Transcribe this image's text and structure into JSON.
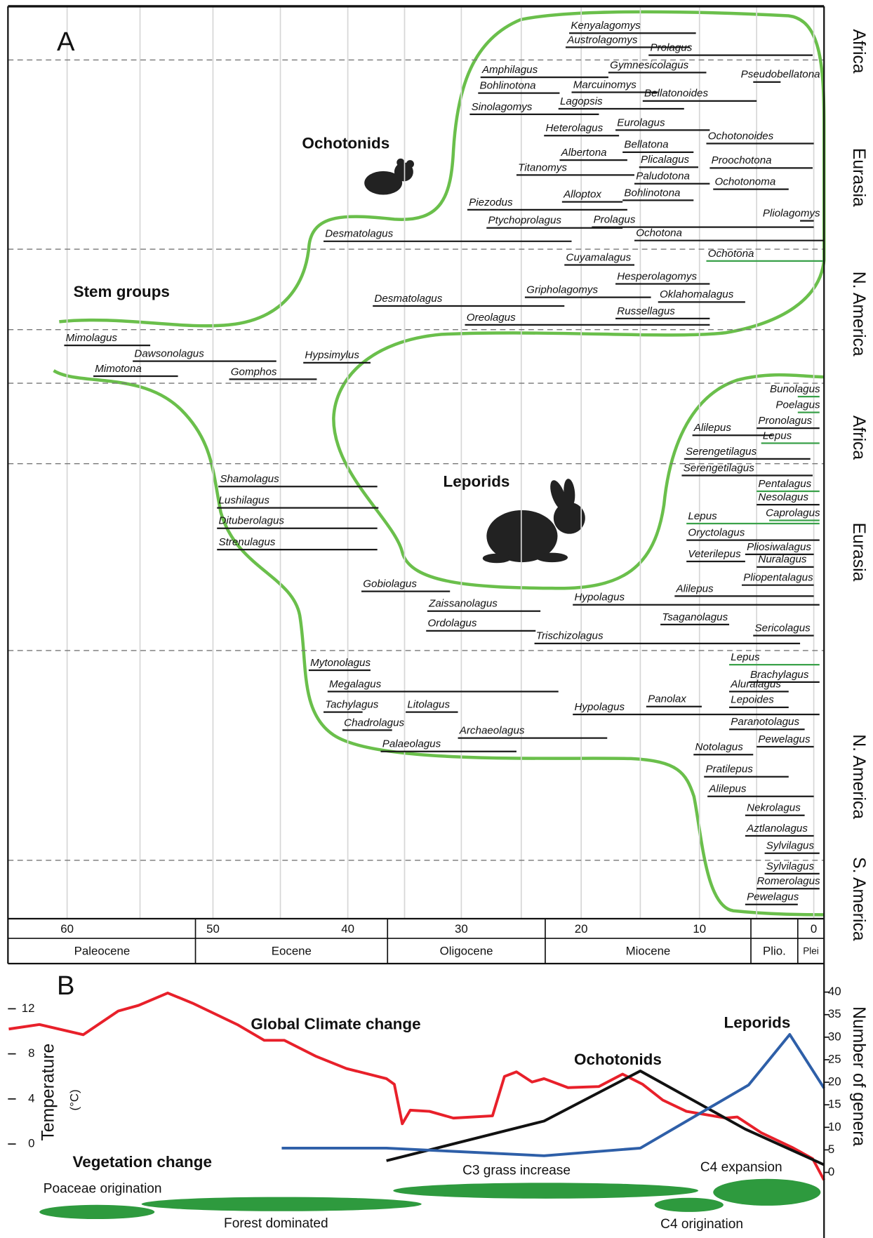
{
  "chart_data": [
    {
      "type": "range",
      "panel_label": "A",
      "annotations": [
        "Ochotonids",
        "Stem groups",
        "Leporids"
      ],
      "regions": [
        "Africa",
        "Eurasia",
        "N. America",
        "Africa",
        "Eurasia",
        "N. America",
        "S. America"
      ],
      "xlim": [
        64,
        -0.9
      ],
      "xticks": [
        60,
        50,
        40,
        30,
        20,
        10,
        0
      ],
      "minor_xticks": [
        55,
        45,
        35,
        25,
        15,
        5
      ],
      "grid": true,
      "epochs": [
        {
          "name": "Paleocene",
          "range": [
            64,
            51.2
          ]
        },
        {
          "name": "Eocene",
          "range": [
            51.2,
            36.5
          ]
        },
        {
          "name": "Oligocene",
          "range": [
            36.5,
            23
          ]
        },
        {
          "name": "Miocene",
          "range": [
            23,
            5.5
          ]
        },
        {
          "name": "Plio.",
          "range": [
            5.5,
            1.4
          ]
        },
        {
          "name": "Plei",
          "range": [
            1.4,
            -0.9
          ]
        }
      ],
      "bar_color": "#1a1a1a",
      "taxa": [
        {
          "name": "Kenyalagomys",
          "range": [
            21,
            10.3
          ]
        },
        {
          "name": "Austrolagomys",
          "range": [
            21.3,
            10.8
          ]
        },
        {
          "name": "Prolagus",
          "range": [
            14.3,
            0.1
          ]
        },
        {
          "name": "Amphilagus",
          "range": [
            28.4,
            17.7
          ]
        },
        {
          "name": "Gymnesicolagus",
          "range": [
            17.7,
            9.4
          ]
        },
        {
          "name": "Pseudobellatona",
          "range": [
            5.3,
            2.9
          ]
        },
        {
          "name": "Bohlinotona",
          "range": [
            28.6,
            21.8
          ]
        },
        {
          "name": "Marcuinomys",
          "range": [
            20.8,
            13.5
          ]
        },
        {
          "name": "Bellatonoides",
          "range": [
            14.8,
            5
          ]
        },
        {
          "name": "Lagopsis",
          "range": [
            21.9,
            11.3
          ]
        },
        {
          "name": "Sinolagomys",
          "range": [
            29.3,
            18.5
          ]
        },
        {
          "name": "Eurolagus",
          "range": [
            17.1,
            9.1
          ]
        },
        {
          "name": "Heterolagus",
          "range": [
            23.1,
            16.8
          ]
        },
        {
          "name": "Ochotonoides",
          "range": [
            9.4,
            0
          ]
        },
        {
          "name": "Bellatona",
          "range": [
            16.5,
            10.5
          ]
        },
        {
          "name": "Albertona",
          "range": [
            21.8,
            16.1
          ]
        },
        {
          "name": "Plicalagus",
          "range": [
            15.1,
            10.1
          ]
        },
        {
          "name": "Proochotona",
          "range": [
            9.1,
            0.1
          ]
        },
        {
          "name": "Titanomys",
          "range": [
            25.4,
            15.5
          ]
        },
        {
          "name": "Paludotona",
          "range": [
            15.5,
            9.1
          ]
        },
        {
          "name": "Ochotonoma",
          "range": [
            8.8,
            2.2
          ]
        },
        {
          "name": "Alloptox",
          "range": [
            21.6,
            16.5
          ]
        },
        {
          "name": "Bohlinotona",
          "range": [
            16.5,
            10.5
          ]
        },
        {
          "name": "Piezodus",
          "range": [
            29.5,
            16.1
          ]
        },
        {
          "name": "Pliolagomys",
          "range": [
            1.2,
            0
          ]
        },
        {
          "name": "Ptychoprolagus",
          "range": [
            27.9,
            16.5
          ]
        },
        {
          "name": "Prolagus",
          "range": [
            19.1,
            0
          ]
        },
        {
          "name": "Desmatolagus",
          "range": [
            41.8,
            20.8
          ]
        },
        {
          "name": "Ochotona",
          "range": [
            15.5,
            -0.9
          ]
        },
        {
          "name": "Ochotona",
          "range": [
            9.4,
            -0.9
          ],
          "color": "#3aa14a"
        },
        {
          "name": "Cuyamalagus",
          "range": [
            21.4,
            15.5
          ]
        },
        {
          "name": "Hesperolagomys",
          "range": [
            17.1,
            9.1
          ]
        },
        {
          "name": "Gripholagomys",
          "range": [
            24.7,
            14.1
          ]
        },
        {
          "name": "Desmatolagus",
          "range": [
            37.8,
            21.4
          ]
        },
        {
          "name": "Oklahomalagus",
          "range": [
            13.5,
            6
          ]
        },
        {
          "name": "Russellagus",
          "range": [
            17.1,
            9.1
          ]
        },
        {
          "name": "Oreolagus",
          "range": [
            29.7,
            9.1
          ]
        },
        {
          "name": "Mimolagus",
          "range": [
            60.2,
            54.3
          ]
        },
        {
          "name": "Dawsonolagus",
          "range": [
            55.5,
            45.3
          ]
        },
        {
          "name": "Hypsimylus",
          "range": [
            43.3,
            38
          ]
        },
        {
          "name": "Mimotona",
          "range": [
            58.2,
            52.4
          ]
        },
        {
          "name": "Gomphos",
          "range": [
            48.8,
            42.3
          ]
        },
        {
          "name": "Bunolagus",
          "range": [
            1.4,
            -0.5
          ],
          "color": "#3aa14a"
        },
        {
          "name": "Poelagus",
          "range": [
            1.4,
            -0.5
          ],
          "color": "#3aa14a"
        },
        {
          "name": "Pronolagus",
          "range": [
            5,
            -0.5
          ]
        },
        {
          "name": "Alilepus",
          "range": [
            10.6,
            3.6
          ]
        },
        {
          "name": "Lepus",
          "range": [
            4.6,
            -0.5
          ],
          "color": "#3aa14a"
        },
        {
          "name": "Serengetilagus",
          "range": [
            11.3,
            0.3
          ]
        },
        {
          "name": "Serengetilagus",
          "range": [
            11.5,
            0.1
          ]
        },
        {
          "name": "Shamolagus",
          "range": [
            49.6,
            37.4
          ]
        },
        {
          "name": "Pentalagus",
          "range": [
            5,
            -0.5
          ],
          "color": "#3aa14a"
        },
        {
          "name": "Nesolagus",
          "range": [
            5,
            -0.5
          ]
        },
        {
          "name": "Lushilagus",
          "range": [
            49.7,
            37.3
          ]
        },
        {
          "name": "Caprolagus",
          "range": [
            3.9,
            -0.5
          ],
          "color": "#3aa14a"
        },
        {
          "name": "Lepus",
          "range": [
            11.1,
            -0.5
          ],
          "color": "#3aa14a"
        },
        {
          "name": "Dituberolagus",
          "range": [
            49.7,
            37.4
          ]
        },
        {
          "name": "Oryctolagus",
          "range": [
            11.1,
            -0.5
          ]
        },
        {
          "name": "Strenulagus",
          "range": [
            49.7,
            37.4
          ]
        },
        {
          "name": "Pliosiwalagus",
          "range": [
            6,
            0
          ]
        },
        {
          "name": "Veterilepus",
          "range": [
            11.1,
            6
          ]
        },
        {
          "name": "Nuralagus",
          "range": [
            5,
            0
          ]
        },
        {
          "name": "Pliopentalagus",
          "range": [
            6.3,
            0
          ]
        },
        {
          "name": "Gobiolagus",
          "range": [
            38.8,
            31
          ]
        },
        {
          "name": "Alilepus",
          "range": [
            12.1,
            0
          ]
        },
        {
          "name": "Hypolagus",
          "range": [
            20.7,
            -0.5
          ]
        },
        {
          "name": "Zaissanolagus",
          "range": [
            33,
            23.4
          ]
        },
        {
          "name": "Tsaganolagus",
          "range": [
            13.3,
            7.4
          ]
        },
        {
          "name": "Ordolagus",
          "range": [
            33.1,
            23.8
          ]
        },
        {
          "name": "Sericolagus",
          "range": [
            5.3,
            0
          ]
        },
        {
          "name": "Trischizolagus",
          "range": [
            23.9,
            1.2
          ]
        },
        {
          "name": "Lepus",
          "range": [
            7.4,
            -0.5
          ],
          "color": "#3aa14a"
        },
        {
          "name": "Mytonolagus",
          "range": [
            42.9,
            38
          ]
        },
        {
          "name": "Brachylagus",
          "range": [
            5.7,
            -0.5
          ]
        },
        {
          "name": "Megalagus",
          "range": [
            41.5,
            21.9
          ]
        },
        {
          "name": "Aluralagus",
          "range": [
            7.4,
            2.2
          ]
        },
        {
          "name": "Tachylagus",
          "range": [
            41.8,
            38.7
          ]
        },
        {
          "name": "Litolagus",
          "range": [
            34.9,
            30.3
          ]
        },
        {
          "name": "Panolax",
          "range": [
            14.5,
            9.8
          ]
        },
        {
          "name": "Lepoides",
          "range": [
            7.4,
            2.2
          ]
        },
        {
          "name": "Hypolagus",
          "range": [
            20.7,
            -0.5
          ]
        },
        {
          "name": "Chadrolagus",
          "range": [
            40.4,
            36.1
          ]
        },
        {
          "name": "Paranotolagus",
          "range": [
            7.4,
            0.8
          ]
        },
        {
          "name": "Archaeolagus",
          "range": [
            30.3,
            17.8
          ]
        },
        {
          "name": "Palaeolagus",
          "range": [
            37.1,
            25.4
          ]
        },
        {
          "name": "Pewelagus",
          "range": [
            5,
            0
          ]
        },
        {
          "name": "Notolagus",
          "range": [
            10.5,
            5.3
          ]
        },
        {
          "name": "Pratilepus",
          "range": [
            9.6,
            2.2
          ]
        },
        {
          "name": "Alilepus",
          "range": [
            9.3,
            0
          ]
        },
        {
          "name": "Nekrolagus",
          "range": [
            6,
            0.8
          ]
        },
        {
          "name": "Aztlanolagus",
          "range": [
            6,
            0
          ]
        },
        {
          "name": "Sylvilagus",
          "range": [
            4.3,
            -0.5
          ]
        },
        {
          "name": "Sylvilagus",
          "range": [
            4.3,
            -0.5
          ]
        },
        {
          "name": "Romerolagus",
          "range": [
            5,
            -0.5
          ]
        },
        {
          "name": "Pewelagus",
          "range": [
            6,
            1.4
          ]
        }
      ]
    },
    {
      "type": "line",
      "panel_label": "B",
      "ylabel": "Temperature",
      "ylabel_unit": "(°C)",
      "y2label": "Number of genera",
      "xlim": [
        64,
        -0.9
      ],
      "ylim": [
        -8.2,
        15.8
      ],
      "yticks": [
        0,
        4,
        8,
        12
      ],
      "y2lim": [
        -14.2,
        45.8
      ],
      "y2ticks": [
        0,
        5,
        10,
        15,
        20,
        25,
        30,
        35,
        40
      ],
      "series": [
        {
          "name": "Global Climate change",
          "color": "#e8202a",
          "x": [
            64,
            61.9,
            58.9,
            56.5,
            55.1,
            53.1,
            51.4,
            48.2,
            46.2,
            44.7,
            42.4,
            40.1,
            36.6,
            35.9,
            35.2,
            34.5,
            32.8,
            30.7,
            27.4,
            26.4,
            25.4,
            24.1,
            23.1,
            21.1,
            18.5,
            16.5,
            14.8,
            13.1,
            11.1,
            7.7,
            6.7,
            4.6,
            1.9,
            0.1,
            -0.9
          ],
          "values": [
            10.2,
            10.6,
            9.7,
            11.8,
            12.3,
            13.4,
            12.5,
            10.6,
            9.2,
            9.2,
            7.8,
            6.7,
            5.8,
            5.3,
            1.8,
            3.0,
            2.9,
            2.3,
            2.5,
            6.0,
            6.4,
            5.5,
            5.8,
            5.0,
            5.1,
            6.2,
            5.3,
            3.9,
            2.9,
            2.3,
            2.4,
            1.0,
            -0.3,
            -1.3,
            -3.2
          ]
        },
        {
          "name": "Ochotonids",
          "color": "#111111",
          "axis": "y2",
          "x": [
            36.6,
            23.1,
            15,
            6,
            -0.9
          ],
          "values": [
            2.6,
            11.4,
            22.5,
            9.6,
            1.7
          ]
        },
        {
          "name": "Leporids",
          "color": "#2e5fa8",
          "axis": "y2",
          "x": [
            44.9,
            36.6,
            23.1,
            15,
            5.7,
            2.1,
            -0.9
          ],
          "values": [
            5.4,
            5.4,
            3.7,
            5.4,
            19.4,
            30.6,
            18.7
          ]
        }
      ],
      "vegetation": {
        "title": "Vegetation change",
        "color": "#2e9a3e",
        "items": [
          {
            "name": "Poaceae origination",
            "range": [
              61.9,
              54
            ]
          },
          {
            "name": "Forest dominated",
            "range": [
              54.9,
              33.5
            ]
          },
          {
            "name": "C3 grass increase",
            "range": [
              36,
              10.1
            ]
          },
          {
            "name": "C4 origination",
            "range": [
              13.8,
              7.9
            ]
          },
          {
            "name": "C4 expansion",
            "range": [
              8.8,
              -0.6
            ]
          }
        ]
      }
    }
  ]
}
